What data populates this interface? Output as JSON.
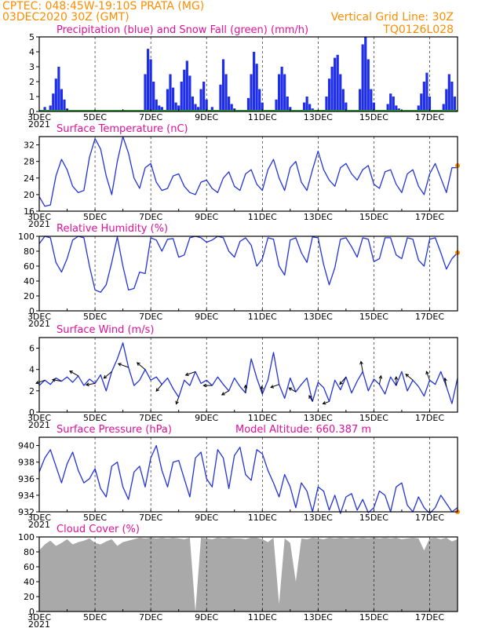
{
  "header": {
    "line1": "CPTEC:   048:45W-19:10S   PRATA (MG)",
    "line2": "03DEC2020 30Z (GMT)",
    "grid_line": "Vertical Grid Line: 30Z",
    "code": "TQ0126L028"
  },
  "colors": {
    "header": "#ff8c00",
    "panel_title": "#e0109a",
    "line": "#2233dd",
    "bars": "#1f2ee8",
    "snow": "#2e9b3a",
    "cloud": "#a9a9a9"
  },
  "date_ticks": [
    "3DEC",
    "5DEC",
    "7DEC",
    "9DEC",
    "11DEC",
    "13DEC",
    "15DEC",
    "17DEC"
  ],
  "stub_label": "2021",
  "chart_data": [
    {
      "type": "bar",
      "title": "Precipitation (blue) and Snow Fall (green) (mm/h)",
      "ylim": [
        0,
        5
      ],
      "yticks": [
        0,
        1,
        2,
        3,
        4,
        5
      ],
      "x_unit": "day of December 2020",
      "x": [
        3.2,
        3.4,
        3.5,
        3.6,
        3.7,
        3.8,
        3.9,
        4.0,
        4.2,
        6.8,
        6.9,
        7.0,
        7.1,
        7.2,
        7.3,
        7.4,
        7.6,
        7.7,
        7.8,
        7.9,
        8.0,
        8.1,
        8.2,
        8.3,
        8.4,
        8.5,
        8.6,
        8.7,
        8.8,
        8.9,
        9.0,
        9.2,
        9.5,
        9.6,
        9.7,
        9.8,
        9.9,
        10.0,
        10.5,
        10.6,
        10.7,
        10.8,
        10.9,
        11.0,
        11.5,
        11.6,
        11.7,
        11.8,
        11.9,
        12.0,
        12.5,
        12.6,
        12.7,
        12.8,
        13.3,
        13.4,
        13.5,
        13.6,
        13.7,
        13.8,
        13.9,
        14.0,
        14.5,
        14.6,
        14.7,
        14.8,
        14.9,
        15.0,
        15.5,
        15.6,
        15.7,
        15.8,
        15.9,
        16.0,
        16.6,
        16.7,
        16.8,
        16.9,
        17.0,
        17.5,
        17.6,
        17.7,
        17.8,
        17.9
      ],
      "values": [
        0.3,
        0.4,
        1.2,
        2.2,
        3.0,
        1.5,
        0.8,
        0.2,
        0.1,
        2.5,
        4.2,
        3.5,
        2.0,
        0.8,
        0.4,
        0.3,
        1.5,
        2.5,
        1.6,
        0.6,
        0.4,
        2.0,
        2.8,
        3.4,
        2.4,
        1.0,
        0.5,
        0.3,
        1.5,
        2.0,
        0.8,
        0.3,
        1.8,
        3.5,
        2.5,
        1.0,
        0.5,
        0.2,
        0.9,
        2.5,
        4.0,
        3.2,
        1.5,
        0.6,
        0.8,
        2.5,
        3.0,
        2.5,
        1.0,
        0.3,
        0.6,
        1.0,
        0.5,
        0.2,
        1.0,
        2.2,
        3.0,
        3.6,
        3.8,
        2.5,
        1.5,
        0.6,
        1.5,
        4.5,
        5.0,
        3.5,
        1.5,
        0.6,
        0.5,
        1.2,
        1.0,
        0.4,
        0.2,
        0.1,
        0.4,
        1.2,
        2.0,
        2.6,
        1.0,
        0.5,
        1.5,
        2.5,
        2.0,
        1.0
      ],
      "snow": 0
    },
    {
      "type": "line",
      "title": "Surface Temperature (nC)",
      "ylim": [
        16,
        34
      ],
      "yticks": [
        16,
        20,
        24,
        28,
        32
      ],
      "x": [
        3.0,
        3.2,
        3.4,
        3.6,
        3.8,
        4.0,
        4.2,
        4.4,
        4.6,
        4.8,
        5.0,
        5.2,
        5.4,
        5.6,
        5.8,
        6.0,
        6.2,
        6.4,
        6.6,
        6.8,
        7.0,
        7.2,
        7.4,
        7.6,
        7.8,
        8.0,
        8.2,
        8.4,
        8.6,
        8.8,
        9.0,
        9.2,
        9.4,
        9.6,
        9.8,
        10.0,
        10.2,
        10.4,
        10.6,
        10.8,
        11.0,
        11.2,
        11.4,
        11.6,
        11.8,
        12.0,
        12.2,
        12.4,
        12.6,
        12.8,
        13.0,
        13.2,
        13.4,
        13.6,
        13.8,
        14.0,
        14.2,
        14.4,
        14.6,
        14.8,
        15.0,
        15.2,
        15.4,
        15.6,
        15.8,
        16.0,
        16.2,
        16.4,
        16.6,
        16.8,
        17.0,
        17.2,
        17.4,
        17.6,
        17.8,
        18.0
      ],
      "values": [
        19.5,
        17.2,
        17.5,
        24.5,
        28.5,
        26.0,
        22.0,
        20.5,
        21.0,
        29.0,
        33.5,
        31.0,
        24.5,
        20.0,
        28.0,
        34.0,
        30.0,
        24.0,
        21.5,
        26.5,
        27.5,
        23.0,
        21.0,
        21.5,
        24.5,
        25.0,
        22.0,
        20.5,
        20.0,
        23.0,
        23.5,
        21.5,
        20.5,
        24.0,
        25.5,
        22.0,
        21.0,
        25.0,
        26.0,
        22.5,
        21.0,
        26.0,
        28.5,
        24.0,
        21.0,
        26.5,
        28.0,
        23.0,
        21.0,
        26.0,
        30.5,
        26.0,
        23.5,
        22.0,
        26.5,
        27.5,
        25.0,
        23.5,
        26.0,
        27.0,
        22.5,
        21.5,
        25.5,
        26.0,
        22.5,
        20.5,
        25.0,
        26.0,
        22.0,
        20.0,
        25.0,
        27.5,
        24.0,
        20.5,
        26.5,
        26.5
      ],
      "marker_day": 18.0,
      "marker_value": 27
    },
    {
      "type": "line",
      "title": "Relative Humidity (%)",
      "ylim": [
        0,
        100
      ],
      "yticks": [
        0,
        20,
        40,
        60,
        80,
        100
      ],
      "x": [
        3.0,
        3.2,
        3.4,
        3.6,
        3.8,
        4.0,
        4.2,
        4.4,
        4.6,
        4.8,
        5.0,
        5.2,
        5.4,
        5.6,
        5.8,
        6.0,
        6.2,
        6.4,
        6.6,
        6.8,
        7.0,
        7.2,
        7.4,
        7.6,
        7.8,
        8.0,
        8.2,
        8.4,
        8.6,
        8.8,
        9.0,
        9.2,
        9.4,
        9.6,
        9.8,
        10.0,
        10.2,
        10.4,
        10.6,
        10.8,
        11.0,
        11.2,
        11.4,
        11.6,
        11.8,
        12.0,
        12.2,
        12.4,
        12.6,
        12.8,
        13.0,
        13.2,
        13.4,
        13.6,
        13.8,
        14.0,
        14.2,
        14.4,
        14.6,
        14.8,
        15.0,
        15.2,
        15.4,
        15.6,
        15.8,
        16.0,
        16.2,
        16.4,
        16.6,
        16.8,
        17.0,
        17.2,
        17.4,
        17.6,
        17.8,
        18.0
      ],
      "values": [
        90,
        100,
        98,
        65,
        52,
        70,
        95,
        100,
        98,
        60,
        28,
        25,
        35,
        65,
        99,
        60,
        28,
        30,
        52,
        50,
        98,
        95,
        80,
        96,
        97,
        72,
        75,
        98,
        100,
        98,
        92,
        95,
        100,
        98,
        80,
        72,
        93,
        98,
        88,
        60,
        70,
        98,
        96,
        60,
        48,
        95,
        98,
        78,
        65,
        99,
        98,
        62,
        35,
        58,
        96,
        98,
        86,
        72,
        98,
        96,
        66,
        70,
        98,
        98,
        75,
        70,
        98,
        96,
        68,
        60,
        96,
        98,
        78,
        56,
        70,
        78
      ],
      "marker_day": 18.0,
      "marker_value": 78
    },
    {
      "type": "line",
      "title": "Surface Wind (m/s)",
      "ylim": [
        0,
        7
      ],
      "yticks": [
        0,
        2,
        4,
        6
      ],
      "x": [
        3.0,
        3.2,
        3.4,
        3.6,
        3.8,
        4.0,
        4.2,
        4.4,
        4.6,
        4.8,
        5.0,
        5.2,
        5.4,
        5.6,
        5.8,
        6.0,
        6.2,
        6.4,
        6.6,
        6.8,
        7.0,
        7.2,
        7.4,
        7.6,
        7.8,
        8.0,
        8.2,
        8.4,
        8.6,
        8.8,
        9.0,
        9.2,
        9.4,
        9.6,
        9.8,
        10.0,
        10.2,
        10.4,
        10.6,
        10.8,
        11.0,
        11.2,
        11.4,
        11.6,
        11.8,
        12.0,
        12.2,
        12.4,
        12.6,
        12.8,
        13.0,
        13.2,
        13.4,
        13.6,
        13.8,
        14.0,
        14.2,
        14.4,
        14.6,
        14.8,
        15.0,
        15.2,
        15.4,
        15.6,
        15.8,
        16.0,
        16.2,
        16.4,
        16.6,
        16.8,
        17.0,
        17.2,
        17.4,
        17.6,
        17.8,
        18.0
      ],
      "values": [
        2.5,
        3.0,
        2.6,
        3.2,
        2.9,
        3.3,
        2.8,
        3.4,
        2.5,
        3.1,
        2.7,
        3.5,
        2.0,
        3.8,
        5.0,
        6.5,
        4.2,
        2.5,
        3.0,
        4.0,
        3.0,
        3.3,
        2.6,
        3.2,
        2.2,
        1.4,
        3.0,
        2.5,
        3.8,
        2.7,
        3.0,
        2.5,
        3.3,
        2.6,
        2.0,
        3.2,
        2.4,
        1.8,
        5.0,
        3.2,
        1.7,
        3.0,
        5.6,
        2.6,
        1.3,
        3.2,
        1.9,
        2.6,
        3.2,
        1.0,
        2.8,
        2.3,
        1.0,
        3.0,
        2.1,
        3.3,
        1.8,
        2.9,
        3.8,
        2.0,
        3.1,
        2.6,
        1.7,
        3.3,
        2.5,
        3.8,
        2.0,
        3.0,
        2.4,
        1.5,
        3.0,
        2.6,
        3.8,
        2.4,
        0.8,
        3.2
      ],
      "vectors_label": "wind direction arrows"
    },
    {
      "type": "line",
      "title": "Surface Pressure (hPa)",
      "annotation": "Model Altitude: 660.387 m",
      "ylim": [
        932,
        941
      ],
      "yticks": [
        932,
        934,
        936,
        938,
        940
      ],
      "x": [
        3.0,
        3.2,
        3.4,
        3.6,
        3.8,
        4.0,
        4.2,
        4.4,
        4.6,
        4.8,
        5.0,
        5.2,
        5.4,
        5.6,
        5.8,
        6.0,
        6.2,
        6.4,
        6.6,
        6.8,
        7.0,
        7.2,
        7.4,
        7.6,
        7.8,
        8.0,
        8.2,
        8.4,
        8.6,
        8.8,
        9.0,
        9.2,
        9.4,
        9.6,
        9.8,
        10.0,
        10.2,
        10.4,
        10.6,
        10.8,
        11.0,
        11.2,
        11.4,
        11.6,
        11.8,
        12.0,
        12.2,
        12.4,
        12.6,
        12.8,
        13.0,
        13.2,
        13.4,
        13.6,
        13.8,
        14.0,
        14.2,
        14.4,
        14.6,
        14.8,
        15.0,
        15.2,
        15.4,
        15.6,
        15.8,
        16.0,
        16.2,
        16.4,
        16.6,
        16.8,
        17.0,
        17.2,
        17.4,
        17.6,
        17.8,
        18.0
      ],
      "values": [
        936.8,
        938.5,
        939.5,
        937.5,
        935.5,
        937.8,
        939.2,
        937.0,
        935.5,
        936.0,
        937.2,
        934.8,
        933.8,
        937.5,
        938.0,
        935.0,
        933.5,
        936.8,
        937.5,
        935.0,
        938.5,
        940.0,
        937.0,
        935.0,
        938.0,
        938.2,
        936.0,
        933.8,
        938.5,
        939.2,
        936.0,
        935.0,
        939.5,
        938.5,
        934.8,
        938.8,
        939.8,
        936.5,
        935.8,
        939.5,
        939.0,
        937.0,
        935.5,
        933.8,
        936.5,
        935.0,
        932.5,
        935.5,
        934.5,
        932.0,
        935.0,
        934.5,
        932.2,
        934.0,
        931.8,
        933.8,
        934.2,
        932.2,
        933.5,
        931.9,
        932.5,
        934.5,
        934.0,
        932.0,
        935.0,
        935.5,
        932.8,
        932.0,
        933.8,
        932.5,
        931.8,
        932.5,
        934.0,
        933.0,
        932.0,
        932.5
      ],
      "marker_day": 18.0,
      "marker_value": 932
    },
    {
      "type": "area",
      "title": "Cloud Cover (%)",
      "ylim": [
        0,
        100
      ],
      "yticks": [
        0,
        20,
        40,
        60,
        80,
        100
      ],
      "x": [
        3.0,
        3.2,
        3.4,
        3.6,
        3.8,
        4.0,
        4.2,
        4.4,
        4.6,
        4.8,
        5.0,
        5.2,
        5.4,
        5.6,
        5.8,
        6.0,
        6.2,
        6.4,
        6.6,
        6.8,
        7.0,
        7.2,
        7.4,
        7.6,
        7.8,
        8.0,
        8.2,
        8.4,
        8.6,
        8.8,
        9.0,
        9.2,
        9.4,
        9.6,
        9.8,
        10.0,
        10.2,
        10.4,
        10.6,
        10.8,
        11.0,
        11.2,
        11.4,
        11.6,
        11.8,
        12.0,
        12.2,
        12.4,
        12.6,
        12.8,
        13.0,
        13.2,
        13.4,
        13.6,
        13.8,
        14.0,
        14.2,
        14.4,
        14.6,
        14.8,
        15.0,
        15.2,
        15.4,
        15.6,
        15.8,
        16.0,
        16.2,
        16.4,
        16.6,
        16.8,
        17.0,
        17.2,
        17.4,
        17.6,
        17.8,
        18.0
      ],
      "values": [
        82,
        90,
        95,
        88,
        92,
        97,
        90,
        93,
        95,
        98,
        92,
        90,
        94,
        97,
        88,
        93,
        95,
        97,
        99,
        98,
        99,
        98,
        99,
        98,
        99,
        98,
        97,
        99,
        0,
        99,
        98,
        97,
        99,
        98,
        99,
        98,
        98,
        97,
        99,
        99,
        97,
        93,
        99,
        10,
        98,
        92,
        40,
        98,
        97,
        99,
        98,
        97,
        99,
        98,
        99,
        98,
        99,
        98,
        99,
        98,
        99,
        98,
        99,
        98,
        99,
        97,
        98,
        99,
        98,
        82,
        98,
        99,
        97,
        99,
        94,
        97
      ]
    }
  ]
}
